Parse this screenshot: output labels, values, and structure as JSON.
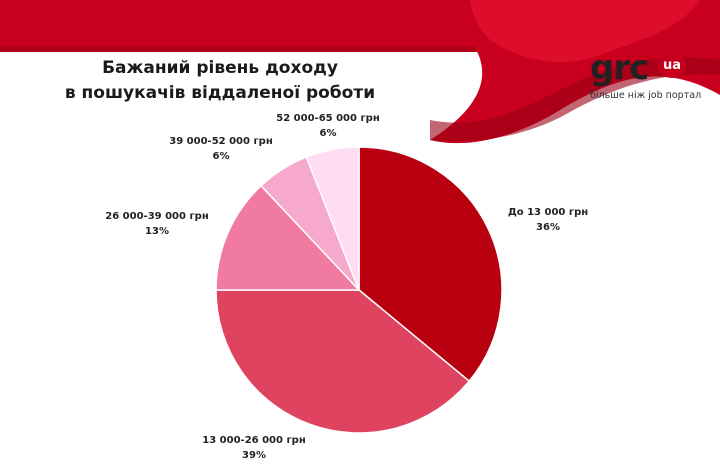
{
  "title_lines": [
    "Бажаний рівень доходу",
    "в пошукачів віддаленої роботи"
  ],
  "logo": {
    "name": "grc",
    "badge": "ua",
    "tagline": "більше ніж job портал"
  },
  "colors": {
    "banner": "#c8001e",
    "banner_dark": "#a8001a"
  },
  "chart_data": {
    "type": "pie",
    "slices": [
      {
        "label": "До 13 000 грн",
        "value": 36,
        "display": "36%",
        "color": "#b80010"
      },
      {
        "label": "13 000-26 000 грн",
        "value": 39,
        "display": "39%",
        "color": "#e0435f"
      },
      {
        "label": "26 000-39 000 грн",
        "value": 13,
        "display": "13%",
        "color": "#f07aa0"
      },
      {
        "label": "39 000-52 000 грн",
        "value": 6,
        "display": "6%",
        "color": "#f7a8cd"
      },
      {
        "label": "52 000-65 000 грн",
        "value": 6,
        "display": "6%",
        "color": "#fedcf2"
      }
    ]
  }
}
